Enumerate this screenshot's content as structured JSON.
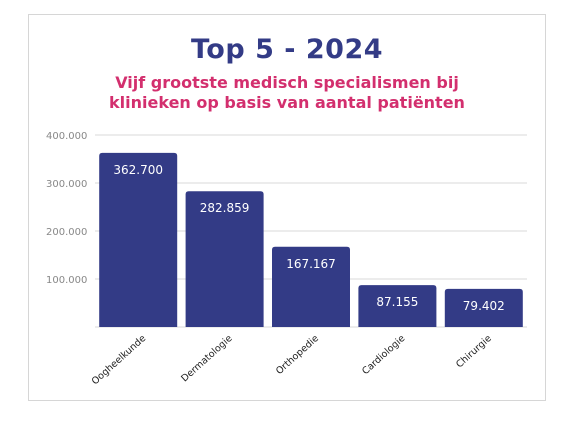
{
  "chart_data": {
    "type": "bar",
    "title": "Top 5 - 2024",
    "subtitle_lines": [
      "Vijf grootste medisch specialismen bij",
      "klinieken op basis van aantal patiënten"
    ],
    "categories": [
      "Oogheelkunde",
      "Dermatologie",
      "Orthopedie",
      "Cardiologie",
      "Chirurgie"
    ],
    "values": [
      362700,
      282859,
      167167,
      87155,
      79402
    ],
    "value_labels": [
      "362.700",
      "282.859",
      "167.167",
      "87.155",
      "79.402"
    ],
    "y_ticks": [
      100000,
      200000,
      300000,
      400000
    ],
    "y_tick_labels": [
      "100.000",
      "200.000",
      "300.000",
      "400.000"
    ],
    "ylim": [
      0,
      400000
    ],
    "grid": true,
    "xlabel": "",
    "ylabel": "",
    "colors": {
      "bar": "#333b86",
      "title": "#333b86",
      "subtitle": "#d32f6e",
      "grid": "#d9d9d9"
    }
  }
}
